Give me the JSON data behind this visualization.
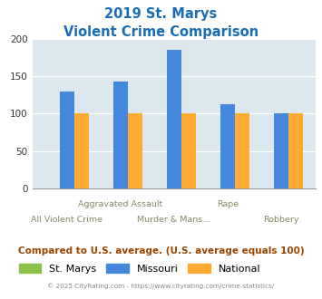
{
  "title_line1": "2019 St. Marys",
  "title_line2": "Violent Crime Comparison",
  "stmarys": [
    0,
    0,
    0,
    0,
    0
  ],
  "missouri": [
    130,
    143,
    185,
    112,
    100
  ],
  "national": [
    100,
    100,
    100,
    100,
    100
  ],
  "colors": {
    "stmarys": "#8bc34a",
    "missouri": "#4488dd",
    "national": "#ffaa33"
  },
  "ylim": [
    0,
    200
  ],
  "yticks": [
    0,
    50,
    100,
    150,
    200
  ],
  "background_color": "#dce8ed",
  "title_color": "#1a6db5",
  "legend_labels": [
    "St. Marys",
    "Missouri",
    "National"
  ],
  "footer_text": "Compared to U.S. average. (U.S. average equals 100)",
  "footer_color": "#994400",
  "copyright_text": "© 2025 CityRating.com - https://www.cityrating.com/crime-statistics/",
  "copyright_color": "#888888",
  "xtick_labels_top": [
    "",
    "Aggravated Assault",
    "",
    "Rape",
    ""
  ],
  "xtick_labels_bot": [
    "All Violent Crime",
    "",
    "Murder & Mans...",
    "",
    "Robbery"
  ]
}
